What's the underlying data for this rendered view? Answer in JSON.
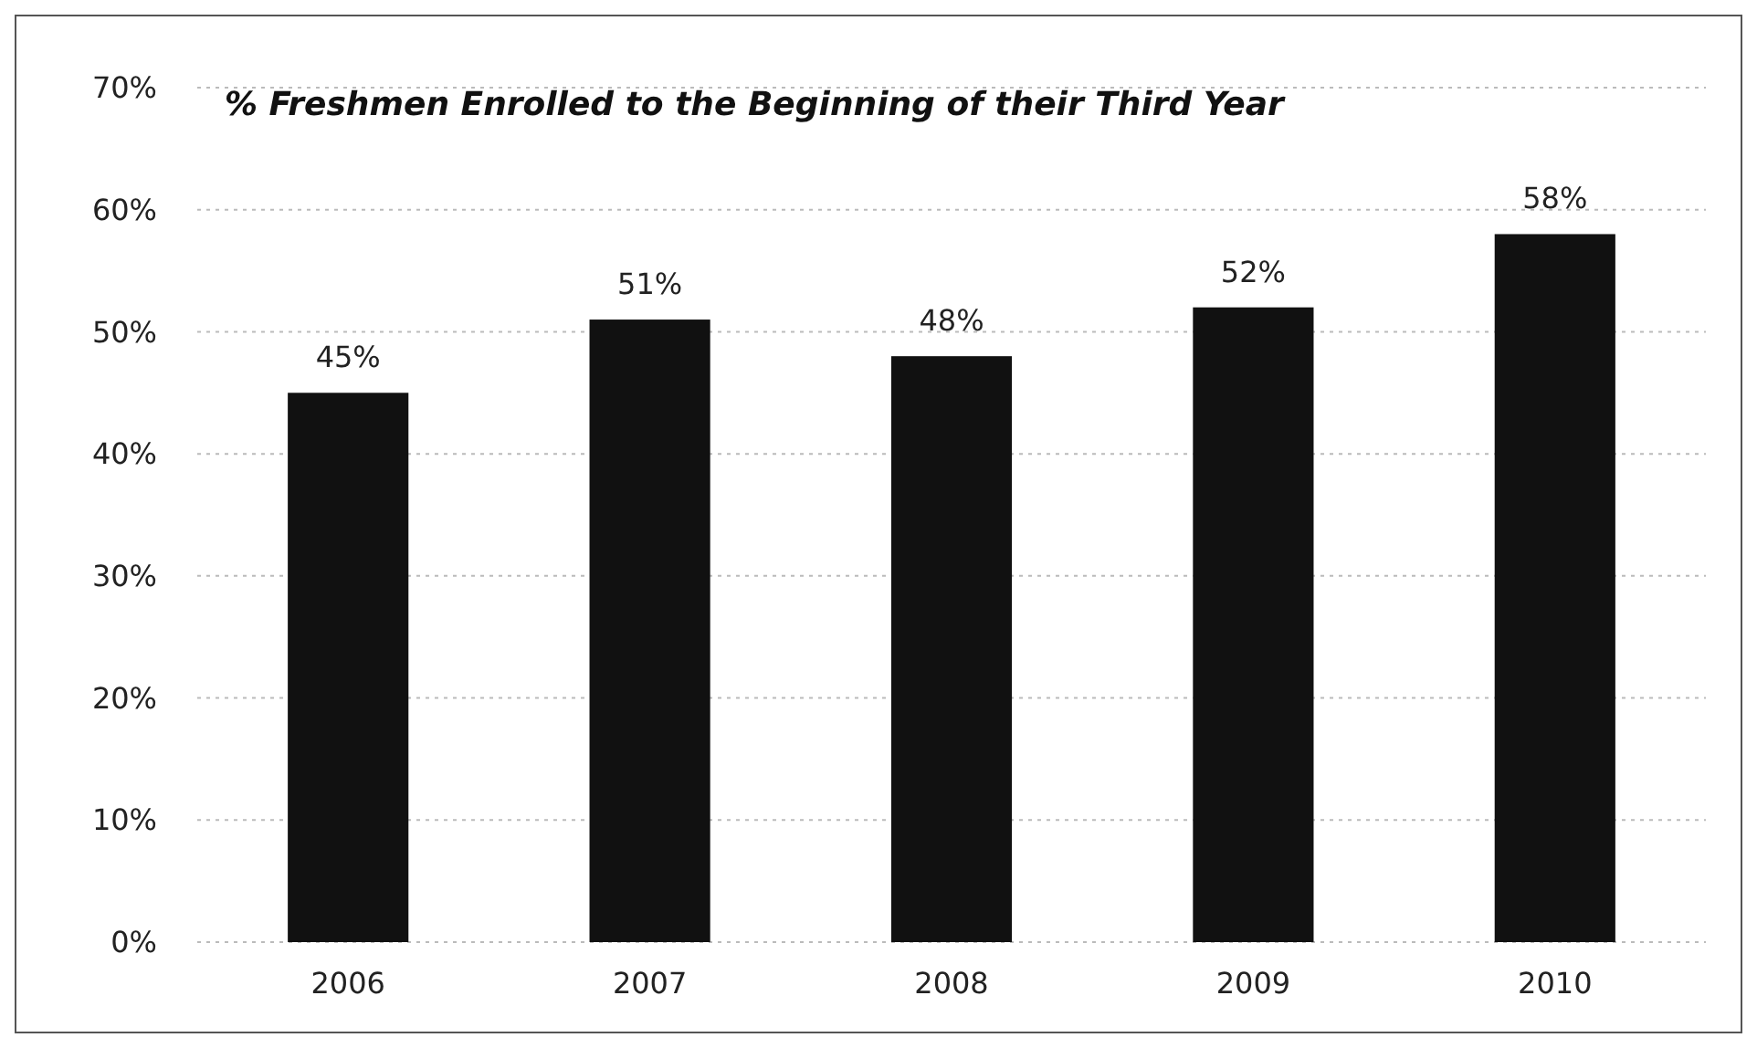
{
  "chart_data": {
    "type": "bar",
    "title": "% Freshmen Enrolled to the Beginning of their Third Year",
    "categories": [
      "2006",
      "2007",
      "2008",
      "2009",
      "2010"
    ],
    "values": [
      45,
      51,
      48,
      52,
      58
    ],
    "value_labels": [
      "45%",
      "51%",
      "48%",
      "52%",
      "58%"
    ],
    "color": "#111111",
    "ylim": [
      0,
      70
    ],
    "yticks": [
      {
        "value": 0,
        "label": "0%"
      },
      {
        "value": 10,
        "label": "10%"
      },
      {
        "value": 20,
        "label": "20%"
      },
      {
        "value": 30,
        "label": "30%"
      },
      {
        "value": 40,
        "label": "40%"
      },
      {
        "value": 50,
        "label": "50%"
      },
      {
        "value": 60,
        "label": "60%"
      },
      {
        "value": 70,
        "label": "70%"
      }
    ],
    "grid": "y"
  }
}
